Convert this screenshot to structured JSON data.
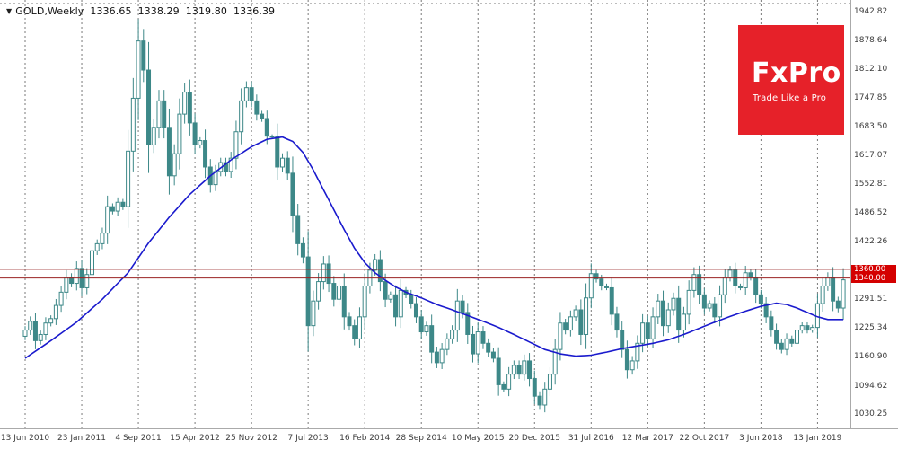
{
  "header": {
    "marker_icon": "▼",
    "symbol_label": "GOLD,Weekly",
    "open": "1336.65",
    "high": "1338.29",
    "low": "1319.80",
    "close": "1336.39"
  },
  "logo": {
    "brand": "FxPro",
    "tagline": "Trade Like a Pro"
  },
  "colors": {
    "background": "#ffffff",
    "candle": "#3d8888",
    "candle_up_fill": "#ffffff",
    "candle_down_fill": "#3d8888",
    "ma_line": "#1a1acd",
    "grid": "#7a7a7a",
    "axis_text": "#3c3c3c",
    "level_line": "#992222",
    "price_tag_bg": "#d40000",
    "price_tag_text": "#ffffff",
    "logo_bg": "#e62129",
    "logo_text": "#ffffff"
  },
  "chart_data": {
    "type": "candlestick",
    "title": "GOLD,Weekly",
    "ylim": [
      999,
      1971
    ],
    "grid": "vertical-dashed",
    "legend_position": "none",
    "last_quote": {
      "open": 1336.65,
      "high": 1338.29,
      "low": 1319.8,
      "close": 1336.39
    },
    "y_tick_labels": [
      "1942.82",
      "1878.64",
      "1812.10",
      "1747.85",
      "1683.50",
      "1617.07",
      "1552.81",
      "1486.52",
      "1422.26",
      "1291.51",
      "1225.34",
      "1160.90",
      "1094.62",
      "1030.25"
    ],
    "x_tick_labels": [
      "13 Jun 2010",
      "23 Jan 2011",
      "4 Sep 2011",
      "15 Apr 2012",
      "25 Nov 2012",
      "7 Jul 2013",
      "16 Feb 2014",
      "28 Sep 2014",
      "10 May 2015",
      "20 Dec 2015",
      "31 Jul 2016",
      "12 Mar 2017",
      "22 Oct 2017",
      "3 Jun 2018",
      "13 Jan 2019"
    ],
    "x_tick_candle_indices": [
      0,
      11,
      22,
      33,
      44,
      55,
      66,
      77,
      88,
      99,
      110,
      121,
      132,
      143,
      154
    ],
    "horizontal_levels": [
      {
        "price": 1360.0,
        "label": "1360.00"
      },
      {
        "price": 1340.0,
        "label": "1340.00"
      }
    ],
    "series": {
      "name": "GOLD weekly (approx. closes, ~3-week steps)",
      "first_open": 1208,
      "wick_pad": 4,
      "wick_factor": 0.35,
      "closes": [
        1222,
        1242,
        1198,
        1212,
        1238,
        1248,
        1278,
        1308,
        1342,
        1328,
        1362,
        1318,
        1348,
        1402,
        1418,
        1442,
        1502,
        1492,
        1512,
        1502,
        1628,
        1748,
        1878,
        1812,
        1642,
        1682,
        1742,
        1682,
        1572,
        1622,
        1712,
        1762,
        1692,
        1642,
        1652,
        1592,
        1552,
        1582,
        1602,
        1582,
        1612,
        1672,
        1742,
        1772,
        1742,
        1712,
        1702,
        1662,
        1662,
        1592,
        1612,
        1578,
        1482,
        1418,
        1388,
        1232,
        1288,
        1332,
        1372,
        1328,
        1292,
        1322,
        1252,
        1232,
        1202,
        1252,
        1322,
        1358,
        1382,
        1332,
        1292,
        1302,
        1252,
        1312,
        1302,
        1282,
        1252,
        1218,
        1232,
        1172,
        1148,
        1178,
        1202,
        1222,
        1288,
        1262,
        1212,
        1168,
        1218,
        1192,
        1172,
        1158,
        1098,
        1088,
        1122,
        1142,
        1122,
        1152,
        1112,
        1072,
        1052,
        1088,
        1122,
        1178,
        1238,
        1222,
        1252,
        1268,
        1212,
        1295,
        1350,
        1338,
        1322,
        1318,
        1258,
        1222,
        1178,
        1132,
        1152,
        1192,
        1238,
        1202,
        1252,
        1288,
        1232,
        1268,
        1294,
        1222,
        1258,
        1312,
        1348,
        1302,
        1272,
        1282,
        1252,
        1302,
        1342,
        1358,
        1322,
        1318,
        1352,
        1342,
        1302,
        1282,
        1252,
        1222,
        1192,
        1178,
        1202,
        1192,
        1222,
        1232,
        1222,
        1228,
        1282,
        1322,
        1342,
        1288,
        1272,
        1336
      ]
    },
    "moving_average": {
      "name": "moving-average",
      "keypoints": [
        [
          0,
          1158
        ],
        [
          5,
          1198
        ],
        [
          10,
          1240
        ],
        [
          15,
          1292
        ],
        [
          20,
          1352
        ],
        [
          24,
          1420
        ],
        [
          28,
          1478
        ],
        [
          32,
          1530
        ],
        [
          36,
          1572
        ],
        [
          40,
          1608
        ],
        [
          44,
          1638
        ],
        [
          47,
          1655
        ],
        [
          50,
          1660
        ],
        [
          52,
          1650
        ],
        [
          54,
          1625
        ],
        [
          56,
          1585
        ],
        [
          58,
          1540
        ],
        [
          60,
          1495
        ],
        [
          62,
          1450
        ],
        [
          64,
          1408
        ],
        [
          66,
          1375
        ],
        [
          68,
          1352
        ],
        [
          70,
          1335
        ],
        [
          72,
          1320
        ],
        [
          74,
          1308
        ],
        [
          77,
          1295
        ],
        [
          80,
          1280
        ],
        [
          83,
          1268
        ],
        [
          86,
          1255
        ],
        [
          89,
          1242
        ],
        [
          92,
          1228
        ],
        [
          95,
          1212
        ],
        [
          98,
          1195
        ],
        [
          101,
          1178
        ],
        [
          104,
          1168
        ],
        [
          107,
          1163
        ],
        [
          110,
          1165
        ],
        [
          113,
          1172
        ],
        [
          116,
          1180
        ],
        [
          119,
          1186
        ],
        [
          122,
          1192
        ],
        [
          125,
          1200
        ],
        [
          128,
          1212
        ],
        [
          131,
          1226
        ],
        [
          134,
          1240
        ],
        [
          137,
          1253
        ],
        [
          140,
          1265
        ],
        [
          143,
          1276
        ],
        [
          146,
          1283
        ],
        [
          148,
          1280
        ],
        [
          150,
          1272
        ],
        [
          152,
          1262
        ],
        [
          154,
          1252
        ],
        [
          156,
          1246
        ],
        [
          159,
          1246
        ]
      ]
    }
  }
}
